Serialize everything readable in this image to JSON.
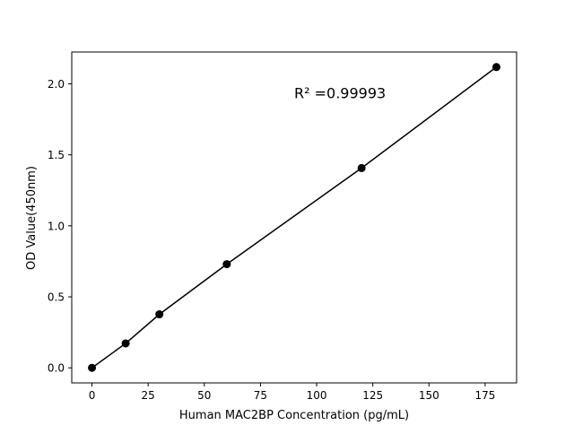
{
  "chart_data": {
    "type": "line",
    "title": "",
    "xlabel": "Human MAC2BP Concentration (pg/mL)",
    "ylabel": "OD Value(450nm)",
    "xlim": [
      -9,
      189
    ],
    "ylim": [
      -0.106,
      2.224
    ],
    "xticks": [
      0,
      25,
      50,
      75,
      100,
      125,
      150,
      175
    ],
    "xtick_labels": [
      "0",
      "25",
      "50",
      "75",
      "100",
      "125",
      "150",
      "175"
    ],
    "yticks": [
      0.0,
      0.5,
      1.0,
      1.5,
      2.0
    ],
    "ytick_labels": [
      "0.0",
      "0.5",
      "1.0",
      "1.5",
      "2.0"
    ],
    "grid": false,
    "series": [
      {
        "x": [
          0,
          15,
          30,
          60,
          120,
          180
        ],
        "y": [
          0.0,
          0.172,
          0.377,
          0.73,
          1.407,
          2.118
        ],
        "color": "#000000",
        "marker": "circle"
      }
    ],
    "annotations": [
      {
        "text": "R² =0.99993",
        "x": 90,
        "y": 1.9
      }
    ]
  }
}
